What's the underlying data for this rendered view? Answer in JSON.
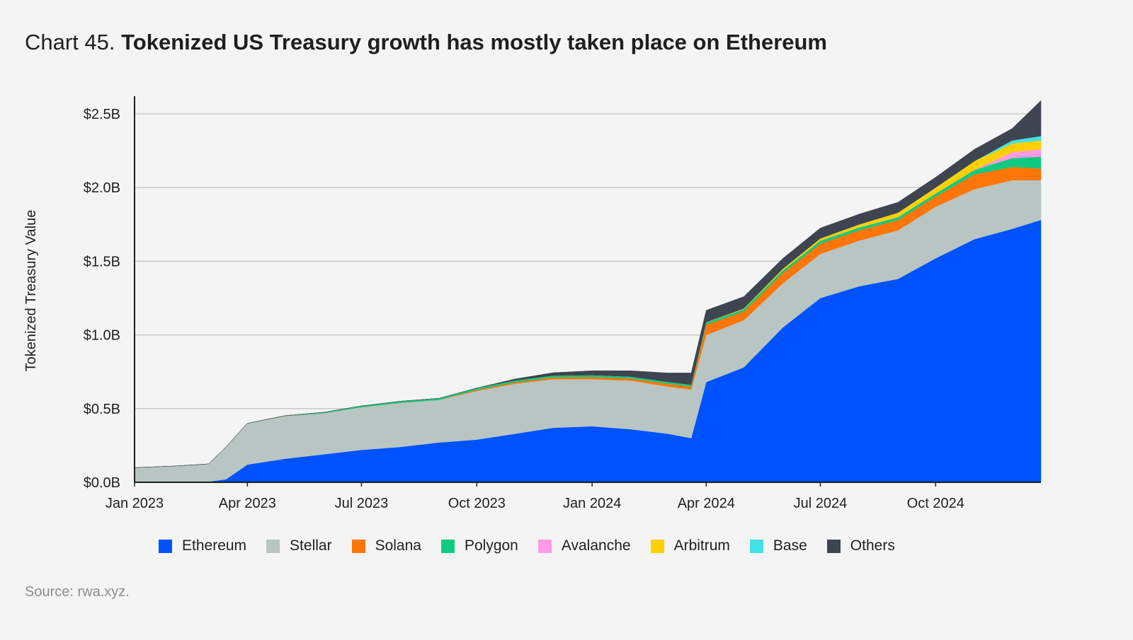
{
  "header": {
    "title_prefix": "Chart 45.",
    "title_main": "Tokenized US Treasury growth has mostly taken place on Ethereum"
  },
  "source": "Source: rwa.xyz.",
  "chart_data": {
    "type": "area",
    "stacked": true,
    "ylabel": "Tokenized Treasury Value",
    "xlabel": "",
    "ylim": [
      0,
      2.6
    ],
    "y_unit": "USD billions",
    "yticks": [
      0,
      0.5,
      1.0,
      1.5,
      2.0,
      2.5
    ],
    "ytick_labels": [
      "$0.0B",
      "$0.5B",
      "$1.0B",
      "$1.5B",
      "$2.0B",
      "$2.5B"
    ],
    "xlim": [
      "2023-01-01",
      "2024-12-24"
    ],
    "xticks": [
      "2023-01-01",
      "2023-04-01",
      "2023-07-01",
      "2023-10-01",
      "2024-01-01",
      "2024-04-01",
      "2024-07-01",
      "2024-10-01"
    ],
    "xtick_labels": [
      "Jan 2023",
      "Apr 2023",
      "Jul 2023",
      "Oct 2023",
      "Jan 2024",
      "Apr 2024",
      "Jul 2024",
      "Oct 2024"
    ],
    "grid": "horizontal",
    "legend_position": "bottom",
    "x": [
      "2023-01-01",
      "2023-02-01",
      "2023-03-01",
      "2023-03-15",
      "2023-04-01",
      "2023-05-01",
      "2023-06-01",
      "2023-07-01",
      "2023-08-01",
      "2023-09-01",
      "2023-10-01",
      "2023-11-01",
      "2023-12-01",
      "2024-01-01",
      "2024-02-01",
      "2024-03-01",
      "2024-03-20",
      "2024-04-01",
      "2024-05-01",
      "2024-06-01",
      "2024-07-01",
      "2024-08-01",
      "2024-09-01",
      "2024-10-01",
      "2024-11-01",
      "2024-12-01",
      "2024-12-24"
    ],
    "series": [
      {
        "name": "Ethereum",
        "color": "#0052ff",
        "values": [
          0,
          0,
          0.005,
          0.02,
          0.12,
          0.16,
          0.19,
          0.22,
          0.24,
          0.27,
          0.29,
          0.33,
          0.37,
          0.38,
          0.36,
          0.33,
          0.3,
          0.68,
          0.78,
          1.05,
          1.25,
          1.33,
          1.38,
          1.52,
          1.65,
          1.72,
          1.78
        ]
      },
      {
        "name": "Stellar",
        "color": "#b8c5c2",
        "values": [
          0.1,
          0.11,
          0.12,
          0.22,
          0.28,
          0.29,
          0.28,
          0.29,
          0.3,
          0.29,
          0.33,
          0.34,
          0.33,
          0.32,
          0.33,
          0.32,
          0.33,
          0.32,
          0.32,
          0.3,
          0.3,
          0.31,
          0.33,
          0.35,
          0.34,
          0.33,
          0.27
        ]
      },
      {
        "name": "Solana",
        "color": "#ff7608",
        "values": [
          0,
          0,
          0,
          0,
          0,
          0,
          0,
          0,
          0,
          0,
          0.008,
          0.01,
          0.012,
          0.015,
          0.015,
          0.02,
          0.02,
          0.07,
          0.06,
          0.07,
          0.07,
          0.07,
          0.07,
          0.07,
          0.1,
          0.09,
          0.08
        ]
      },
      {
        "name": "Polygon",
        "color": "#0ecb81",
        "values": [
          0,
          0,
          0,
          0,
          0,
          0.002,
          0.005,
          0.008,
          0.01,
          0.01,
          0.012,
          0.012,
          0.012,
          0.012,
          0.012,
          0.012,
          0.012,
          0.015,
          0.015,
          0.018,
          0.02,
          0.02,
          0.02,
          0.02,
          0.03,
          0.06,
          0.08
        ]
      },
      {
        "name": "Avalanche",
        "color": "#ff9ae6",
        "values": [
          0,
          0,
          0,
          0,
          0,
          0,
          0,
          0,
          0,
          0,
          0,
          0,
          0,
          0,
          0,
          0,
          0,
          0,
          0,
          0,
          0,
          0,
          0,
          0,
          0,
          0.04,
          0.05
        ]
      },
      {
        "name": "Arbitrum",
        "color": "#ffd000",
        "values": [
          0,
          0,
          0,
          0,
          0,
          0,
          0,
          0,
          0,
          0,
          0,
          0,
          0,
          0,
          0,
          0,
          0,
          0.002,
          0.005,
          0.01,
          0.015,
          0.02,
          0.03,
          0.04,
          0.06,
          0.06,
          0.06
        ]
      },
      {
        "name": "Base",
        "color": "#44e0e8",
        "values": [
          0,
          0,
          0,
          0,
          0,
          0,
          0,
          0,
          0,
          0,
          0,
          0,
          0,
          0,
          0,
          0,
          0,
          0,
          0,
          0,
          0,
          0,
          0,
          0,
          0,
          0.02,
          0.03
        ]
      },
      {
        "name": "Others",
        "color": "#3e4450",
        "values": [
          0,
          0,
          0,
          0,
          0,
          0,
          0,
          0,
          0,
          0,
          0,
          0.01,
          0.02,
          0.03,
          0.04,
          0.06,
          0.08,
          0.08,
          0.08,
          0.07,
          0.07,
          0.07,
          0.07,
          0.07,
          0.08,
          0.08,
          0.24
        ]
      }
    ]
  }
}
